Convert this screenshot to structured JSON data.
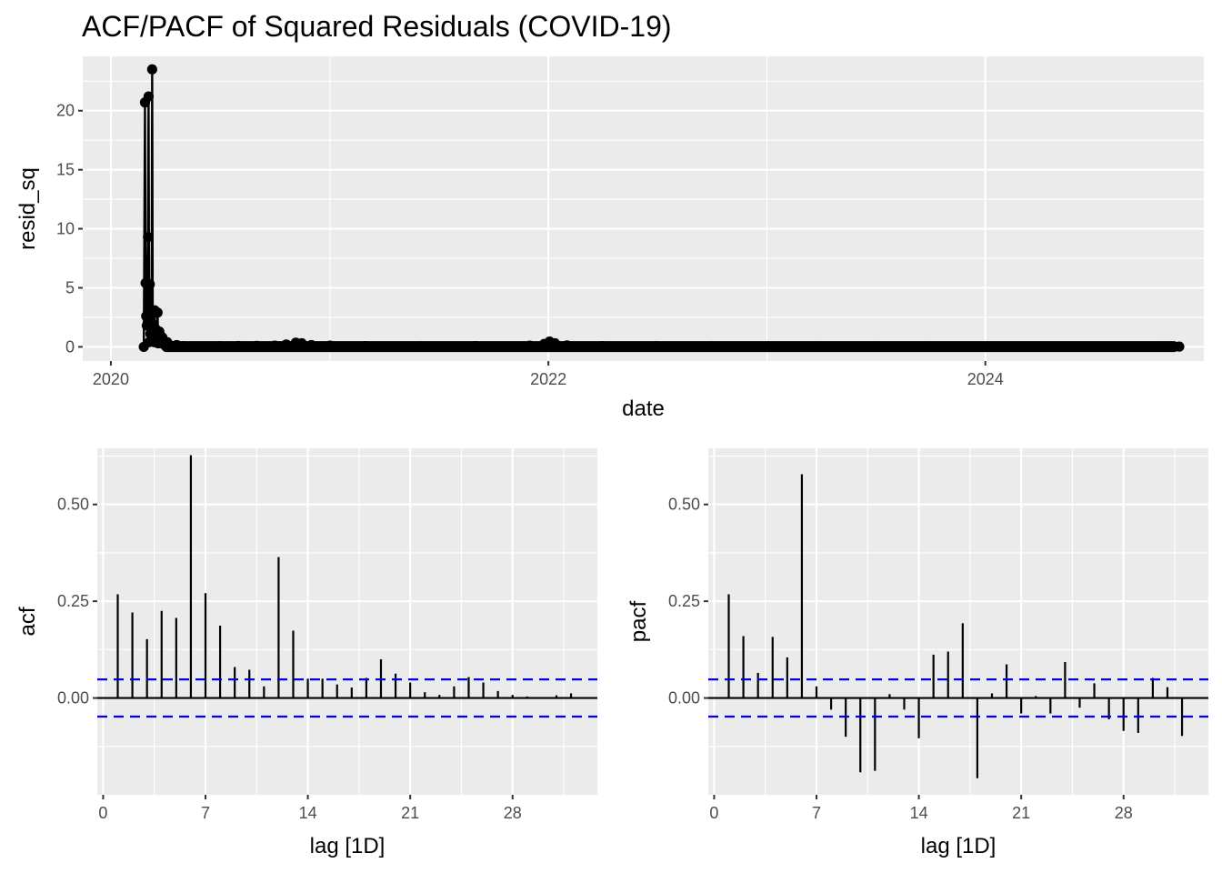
{
  "title": "ACF/PACF of Squared Residuals (COVID-19)",
  "colors": {
    "panel": "#ebebeb",
    "grid": "#ffffff",
    "line": "#000000",
    "ci": "#0000ee",
    "tick_text": "#4d4d4d"
  },
  "chart_data": [
    {
      "type": "line",
      "xlabel": "date",
      "ylabel": "resid_sq",
      "x_ticks": [
        "2020",
        "2022",
        "2024"
      ],
      "y_ticks": [
        0,
        5,
        10,
        15,
        20
      ],
      "xlim": [
        "2019-11-15",
        "2024-12-31"
      ],
      "ylim": [
        -1.2,
        24.6
      ],
      "markers": "points",
      "points": [
        [
          "2020-02-25",
          0.0
        ],
        [
          "2020-02-27",
          20.7
        ],
        [
          "2020-02-28",
          5.4
        ],
        [
          "2020-02-29",
          2.6
        ],
        [
          "2020-03-01",
          1.8
        ],
        [
          "2020-03-03",
          9.3
        ],
        [
          "2020-03-04",
          21.2
        ],
        [
          "2020-03-05",
          0.4
        ],
        [
          "2020-03-06",
          5.3
        ],
        [
          "2020-03-07",
          1.1
        ],
        [
          "2020-03-08",
          2.5
        ],
        [
          "2020-03-09",
          0.6
        ],
        [
          "2020-03-10",
          23.5
        ],
        [
          "2020-03-11",
          0.8
        ],
        [
          "2020-03-12",
          1.9
        ],
        [
          "2020-03-13",
          0.4
        ],
        [
          "2020-03-14",
          3.1
        ],
        [
          "2020-03-15",
          0.5
        ],
        [
          "2020-03-16",
          1.5
        ],
        [
          "2020-03-18",
          0.6
        ],
        [
          "2020-03-19",
          2.9
        ],
        [
          "2020-03-20",
          0.3
        ],
        [
          "2020-03-22",
          1.3
        ],
        [
          "2020-03-24",
          0.3
        ],
        [
          "2020-03-27",
          0.8
        ],
        [
          "2020-03-30",
          0.2
        ],
        [
          "2020-04-04",
          0.4
        ],
        [
          "2020-04-10",
          0.1
        ],
        [
          "2020-04-20",
          0.15
        ],
        [
          "2020-05-01",
          0.05
        ],
        [
          "2020-06-01",
          0.04
        ],
        [
          "2020-07-01",
          0.05
        ],
        [
          "2020-08-01",
          0.07
        ],
        [
          "2020-09-01",
          0.08
        ],
        [
          "2020-10-01",
          0.1
        ],
        [
          "2020-10-20",
          0.2
        ],
        [
          "2020-11-05",
          0.35
        ],
        [
          "2020-11-15",
          0.3
        ],
        [
          "2020-12-01",
          0.15
        ],
        [
          "2021-01-01",
          0.1
        ],
        [
          "2021-03-01",
          0.06
        ],
        [
          "2021-06-01",
          0.04
        ],
        [
          "2021-09-01",
          0.06
        ],
        [
          "2021-12-01",
          0.1
        ],
        [
          "2021-12-25",
          0.25
        ],
        [
          "2022-01-03",
          0.45
        ],
        [
          "2022-01-12",
          0.3
        ],
        [
          "2022-02-01",
          0.12
        ],
        [
          "2022-04-01",
          0.06
        ],
        [
          "2022-07-01",
          0.05
        ],
        [
          "2022-10-01",
          0.04
        ],
        [
          "2023-01-01",
          0.04
        ],
        [
          "2023-04-01",
          0.03
        ],
        [
          "2023-07-01",
          0.03
        ],
        [
          "2023-10-01",
          0.03
        ],
        [
          "2024-01-01",
          0.03
        ],
        [
          "2024-04-01",
          0.02
        ],
        [
          "2024-07-01",
          0.02
        ],
        [
          "2024-10-01",
          0.02
        ],
        [
          "2024-11-20",
          0.02
        ]
      ]
    },
    {
      "type": "bar",
      "name": "acf",
      "xlabel": "lag [1D]",
      "ylabel": "acf",
      "x_ticks": [
        0,
        7,
        14,
        21,
        28
      ],
      "y_ticks": [
        "0.00",
        "0.25",
        "0.50"
      ],
      "xlim": [
        -0.4,
        33.8
      ],
      "ylim": [
        -0.25,
        0.645
      ],
      "ci": 0.048,
      "lags": [
        1,
        2,
        3,
        4,
        5,
        6,
        7,
        8,
        9,
        10,
        11,
        12,
        13,
        14,
        15,
        16,
        17,
        18,
        19,
        20,
        21,
        22,
        23,
        24,
        25,
        26,
        27,
        28,
        29,
        30,
        31,
        32
      ],
      "values": [
        0.268,
        0.221,
        0.152,
        0.225,
        0.207,
        0.627,
        0.271,
        0.187,
        0.08,
        0.073,
        0.03,
        0.364,
        0.174,
        0.05,
        0.05,
        0.035,
        0.027,
        0.052,
        0.1,
        0.063,
        0.04,
        0.015,
        0.008,
        0.03,
        0.054,
        0.04,
        0.018,
        0.008,
        0.004,
        0.0,
        0.007,
        0.012
      ]
    },
    {
      "type": "bar",
      "name": "pacf",
      "xlabel": "lag [1D]",
      "ylabel": "pacf",
      "x_ticks": [
        0,
        7,
        14,
        21,
        28
      ],
      "y_ticks": [
        "0.00",
        "0.25",
        "0.50"
      ],
      "xlim": [
        -0.4,
        33.8
      ],
      "ylim": [
        -0.25,
        0.645
      ],
      "ci": 0.048,
      "lags": [
        1,
        2,
        3,
        4,
        5,
        6,
        7,
        8,
        9,
        10,
        11,
        12,
        13,
        14,
        15,
        16,
        17,
        18,
        19,
        20,
        21,
        22,
        23,
        24,
        25,
        26,
        27,
        28,
        29,
        30,
        31,
        32
      ],
      "values": [
        0.268,
        0.16,
        0.065,
        0.158,
        0.105,
        0.578,
        0.03,
        -0.03,
        -0.1,
        -0.192,
        -0.188,
        0.01,
        -0.03,
        -0.104,
        0.112,
        0.12,
        0.193,
        -0.207,
        0.012,
        0.087,
        -0.04,
        0.005,
        -0.04,
        0.093,
        -0.025,
        0.038,
        -0.055,
        -0.085,
        -0.09,
        0.052,
        0.028,
        -0.098
      ]
    }
  ]
}
